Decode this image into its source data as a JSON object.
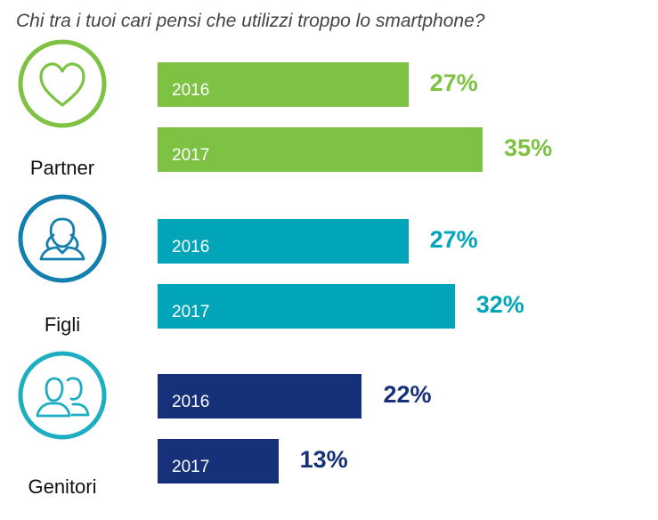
{
  "chart_data": {
    "type": "bar",
    "orientation": "horizontal",
    "title": "Chi tra i tuoi cari pensi che utilizzi troppo lo smartphone?",
    "categories": [
      "Partner",
      "Figli",
      "Genitori"
    ],
    "groups": [
      {
        "name": "Partner",
        "icon": "heart-icon",
        "color": "#7dc242",
        "bars": [
          {
            "year": "2016",
            "value": 27,
            "label": "27%"
          },
          {
            "year": "2017",
            "value": 35,
            "label": "35%"
          }
        ]
      },
      {
        "name": "Figli",
        "icon": "child-icon",
        "color": "#00a5b9",
        "bars": [
          {
            "year": "2016",
            "value": 27,
            "label": "27%"
          },
          {
            "year": "2017",
            "value": 32,
            "label": "32%"
          }
        ]
      },
      {
        "name": "Genitori",
        "icon": "parents-icon",
        "color": "#16317a",
        "bars": [
          {
            "year": "2016",
            "value": 22,
            "label": "22%"
          },
          {
            "year": "2017",
            "value": 13,
            "label": "13%"
          }
        ]
      }
    ],
    "icon_ring_colors": [
      "#7dc242",
      "#137fae",
      "#1fadc2"
    ]
  }
}
